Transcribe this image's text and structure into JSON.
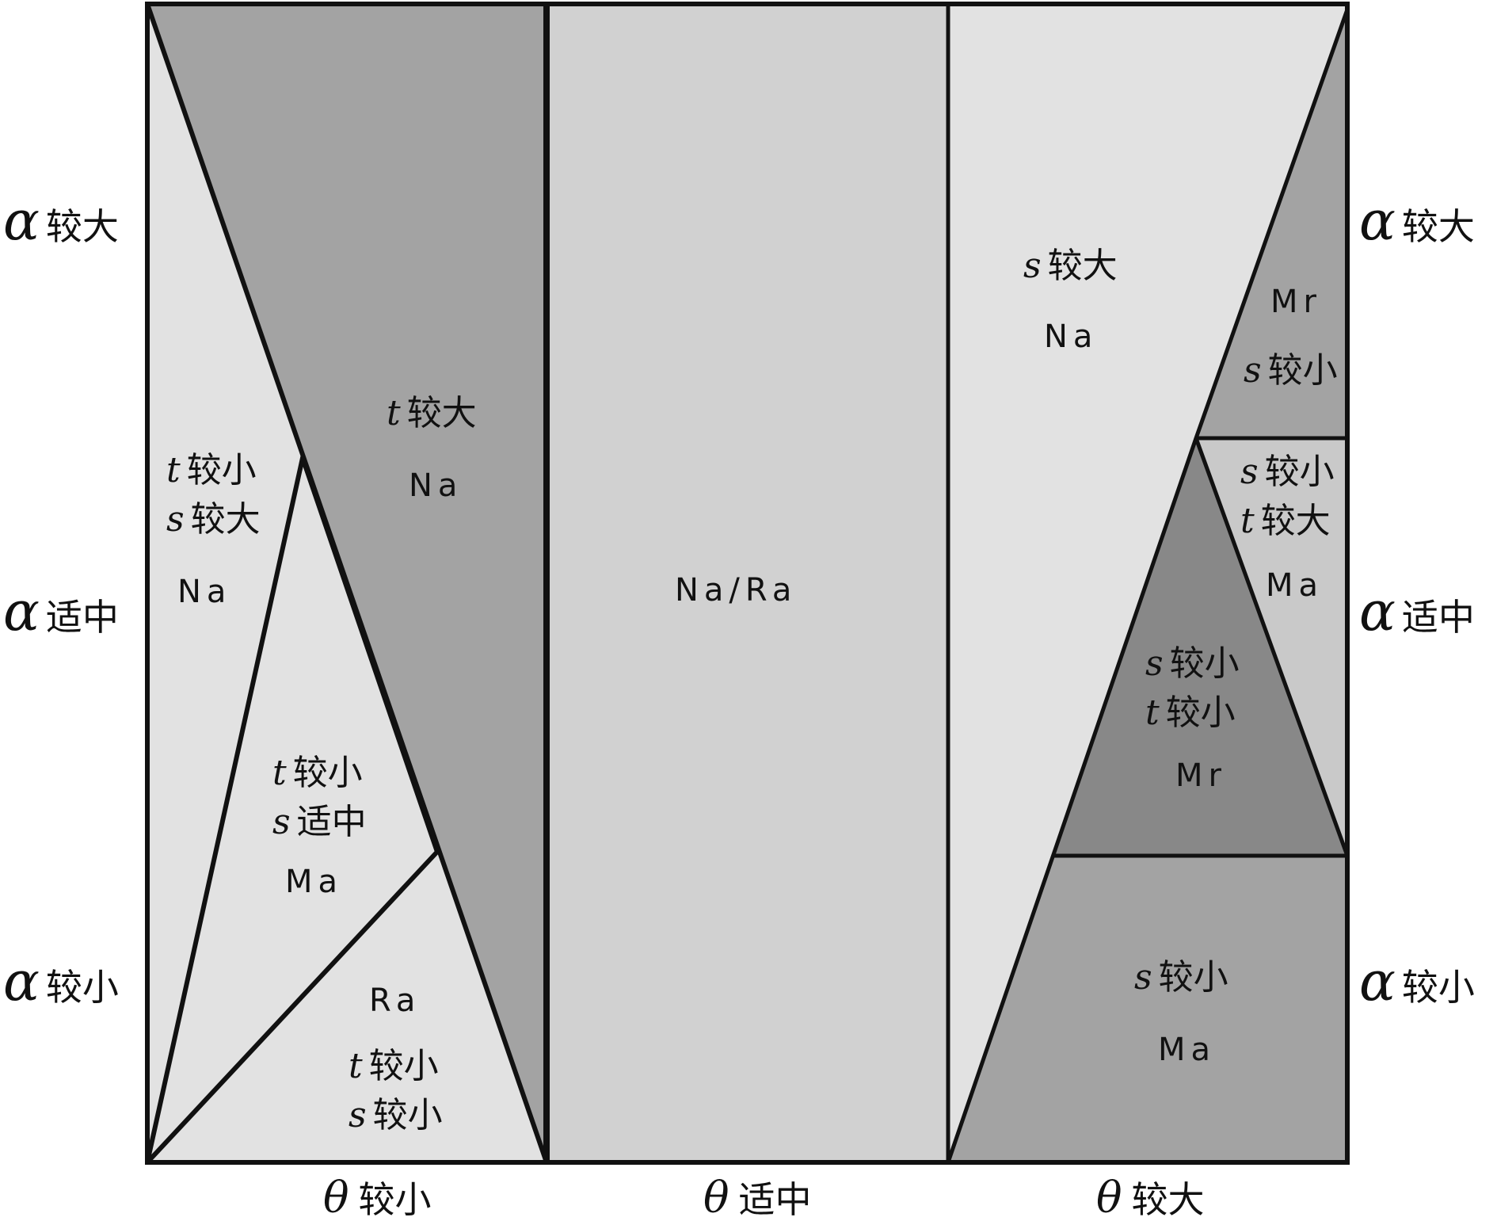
{
  "axes": {
    "left": [
      {
        "symbol": "α",
        "text": "较大"
      },
      {
        "symbol": "α",
        "text": "适中"
      },
      {
        "symbol": "α",
        "text": "较小"
      }
    ],
    "right": [
      {
        "symbol": "α",
        "text": "较大"
      },
      {
        "symbol": "α",
        "text": "适中"
      },
      {
        "symbol": "α",
        "text": "较小"
      }
    ],
    "bottom": [
      {
        "symbol": "θ",
        "text": "较小"
      },
      {
        "symbol": "θ",
        "text": "适中"
      },
      {
        "symbol": "θ",
        "text": "较大"
      }
    ]
  },
  "regions": {
    "left_na": {
      "lines": [
        {
          "v": "t",
          "t": "较小"
        },
        {
          "v": "s",
          "t": "较大"
        }
      ],
      "code": "Na"
    },
    "left_tbig": {
      "lines": [
        {
          "v": "t",
          "t": "较大"
        }
      ],
      "code": "Na"
    },
    "left_ma": {
      "lines": [
        {
          "v": "t",
          "t": "较小"
        },
        {
          "v": "s",
          "t": "适中"
        }
      ],
      "code": "Ma"
    },
    "left_ra": {
      "code": "Ra",
      "lines": [
        {
          "v": "t",
          "t": "较小"
        },
        {
          "v": "s",
          "t": "较小"
        }
      ]
    },
    "middle": {
      "code": "Na/Ra"
    },
    "right_na": {
      "lines": [
        {
          "v": "s",
          "t": "较大"
        }
      ],
      "code": "Na"
    },
    "right_mr_top": {
      "code": "Mr",
      "lines": [
        {
          "v": "s",
          "t": "较小"
        }
      ]
    },
    "right_ma_mid": {
      "lines": [
        {
          "v": "s",
          "t": "较小"
        },
        {
          "v": "t",
          "t": "较大"
        }
      ],
      "code": "Ma"
    },
    "right_mr_tri": {
      "lines": [
        {
          "v": "s",
          "t": "较小"
        },
        {
          "v": "t",
          "t": "较小"
        }
      ],
      "code": "Mr"
    },
    "right_ma_bottom": {
      "lines": [
        {
          "v": "s",
          "t": "较小"
        }
      ],
      "code": "Ma"
    }
  },
  "colors": {
    "light": "#e2e2e2",
    "middle": "#d1d1d1",
    "mid_dark": "#a3a3a3",
    "right_mid_band": "#c9c9c9",
    "dark": "#888888",
    "stroke": "#111111"
  }
}
